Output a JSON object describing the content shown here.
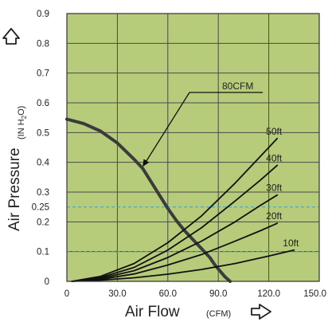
{
  "chart_data": {
    "type": "line",
    "xlabel": "Air Flow",
    "xunit": "(CFM)",
    "ylabel": "Air Pressure",
    "yunit_prefix": "(IN H",
    "yunit_sub": "2",
    "yunit_suffix": "O)",
    "xlim": [
      0,
      150
    ],
    "ylim": [
      0,
      0.9
    ],
    "x_ticks": [
      0,
      30,
      60,
      90,
      120,
      150
    ],
    "x_tick_labels": [
      "0",
      "30.0",
      "60.0",
      "90.0",
      "120.0",
      "150.0"
    ],
    "y_ticks": [
      0,
      0.1,
      0.2,
      0.25,
      0.3,
      0.4,
      0.5,
      0.6,
      0.7,
      0.8,
      0.9
    ],
    "y_tick_labels": [
      "0",
      "0.1",
      "0.2",
      "0.25",
      "0.3",
      "0.4",
      "0.5",
      "0.6",
      "0.7",
      "0.8",
      "0.9"
    ],
    "grid": true,
    "background_color": "#b7cc7a",
    "grid_color": "#4a4a4a",
    "reference_lines": [
      {
        "y": 0.25,
        "color": "#3aa7d6",
        "style": "dashed"
      },
      {
        "y": 0.1,
        "color": "#3aa7d6",
        "style": "dashed"
      }
    ],
    "series": [
      {
        "name": "80CFM",
        "kind": "pump-curve",
        "x": [
          0,
          10,
          20,
          30,
          40,
          45,
          50,
          55,
          60,
          65,
          70,
          75,
          80,
          85,
          88,
          91,
          94,
          97
        ],
        "y": [
          0.545,
          0.53,
          0.505,
          0.465,
          0.41,
          0.38,
          0.335,
          0.29,
          0.245,
          0.205,
          0.17,
          0.14,
          0.11,
          0.08,
          0.055,
          0.035,
          0.015,
          0.0
        ]
      },
      {
        "name": "50ft",
        "x": [
          3,
          20,
          40,
          60,
          80,
          100,
          115,
          125
        ],
        "y": [
          0.0,
          0.017,
          0.06,
          0.13,
          0.22,
          0.33,
          0.42,
          0.48
        ]
      },
      {
        "name": "40ft",
        "x": [
          3,
          20,
          40,
          60,
          80,
          100,
          115,
          125
        ],
        "y": [
          0.0,
          0.013,
          0.047,
          0.105,
          0.18,
          0.27,
          0.34,
          0.39
        ]
      },
      {
        "name": "30ft",
        "x": [
          3,
          20,
          40,
          60,
          80,
          100,
          115,
          125
        ],
        "y": [
          0.0,
          0.01,
          0.036,
          0.08,
          0.135,
          0.2,
          0.255,
          0.29
        ]
      },
      {
        "name": "20ft",
        "x": [
          3,
          20,
          40,
          60,
          80,
          100,
          115,
          125
        ],
        "y": [
          0.0,
          0.007,
          0.025,
          0.055,
          0.09,
          0.135,
          0.17,
          0.195
        ]
      },
      {
        "name": "10ft",
        "x": [
          3,
          20,
          40,
          60,
          80,
          100,
          120,
          135
        ],
        "y": [
          0.0,
          0.004,
          0.012,
          0.024,
          0.04,
          0.06,
          0.085,
          0.105
        ]
      }
    ],
    "annotation": {
      "text": "80CFM",
      "arrow_to": [
        45,
        0.385
      ]
    }
  }
}
